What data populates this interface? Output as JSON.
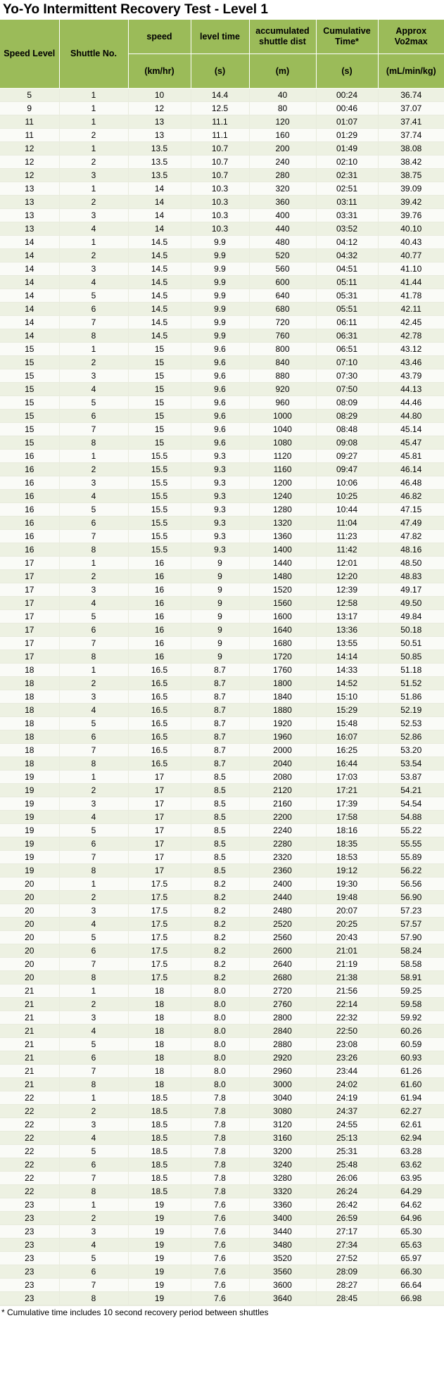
{
  "title": "Yo-Yo Intermittent Recovery Test - Level 1",
  "headers": [
    {
      "top": "",
      "bottom": ""
    },
    {
      "top": "",
      "bottom": ""
    },
    {
      "top": "speed",
      "bottom": "(km/hr)"
    },
    {
      "top": "level time",
      "bottom": "(s)"
    },
    {
      "top": "accumulated shuttle dist",
      "bottom": "(m)"
    },
    {
      "top": "Cumulative Time*",
      "bottom": "(s)"
    },
    {
      "top": "Approx Vo2max",
      "bottom": "(mL/min/kg)"
    }
  ],
  "speed_level_header": "Speed Level",
  "shuttle_no_header": "Shuttle No.",
  "rows": [
    [
      "5",
      "1",
      "10",
      "14.4",
      "40",
      "00:24",
      "36.74"
    ],
    [
      "9",
      "1",
      "12",
      "12.5",
      "80",
      "00:46",
      "37.07"
    ],
    [
      "11",
      "1",
      "13",
      "11.1",
      "120",
      "01:07",
      "37.41"
    ],
    [
      "11",
      "2",
      "13",
      "11.1",
      "160",
      "01:29",
      "37.74"
    ],
    [
      "12",
      "1",
      "13.5",
      "10.7",
      "200",
      "01:49",
      "38.08"
    ],
    [
      "12",
      "2",
      "13.5",
      "10.7",
      "240",
      "02:10",
      "38.42"
    ],
    [
      "12",
      "3",
      "13.5",
      "10.7",
      "280",
      "02:31",
      "38.75"
    ],
    [
      "13",
      "1",
      "14",
      "10.3",
      "320",
      "02:51",
      "39.09"
    ],
    [
      "13",
      "2",
      "14",
      "10.3",
      "360",
      "03:11",
      "39.42"
    ],
    [
      "13",
      "3",
      "14",
      "10.3",
      "400",
      "03:31",
      "39.76"
    ],
    [
      "13",
      "4",
      "14",
      "10.3",
      "440",
      "03:52",
      "40.10"
    ],
    [
      "14",
      "1",
      "14.5",
      "9.9",
      "480",
      "04:12",
      "40.43"
    ],
    [
      "14",
      "2",
      "14.5",
      "9.9",
      "520",
      "04:32",
      "40.77"
    ],
    [
      "14",
      "3",
      "14.5",
      "9.9",
      "560",
      "04:51",
      "41.10"
    ],
    [
      "14",
      "4",
      "14.5",
      "9.9",
      "600",
      "05:11",
      "41.44"
    ],
    [
      "14",
      "5",
      "14.5",
      "9.9",
      "640",
      "05:31",
      "41.78"
    ],
    [
      "14",
      "6",
      "14.5",
      "9.9",
      "680",
      "05:51",
      "42.11"
    ],
    [
      "14",
      "7",
      "14.5",
      "9.9",
      "720",
      "06:11",
      "42.45"
    ],
    [
      "14",
      "8",
      "14.5",
      "9.9",
      "760",
      "06:31",
      "42.78"
    ],
    [
      "15",
      "1",
      "15",
      "9.6",
      "800",
      "06:51",
      "43.12"
    ],
    [
      "15",
      "2",
      "15",
      "9.6",
      "840",
      "07:10",
      "43.46"
    ],
    [
      "15",
      "3",
      "15",
      "9.6",
      "880",
      "07:30",
      "43.79"
    ],
    [
      "15",
      "4",
      "15",
      "9.6",
      "920",
      "07:50",
      "44.13"
    ],
    [
      "15",
      "5",
      "15",
      "9.6",
      "960",
      "08:09",
      "44.46"
    ],
    [
      "15",
      "6",
      "15",
      "9.6",
      "1000",
      "08:29",
      "44.80"
    ],
    [
      "15",
      "7",
      "15",
      "9.6",
      "1040",
      "08:48",
      "45.14"
    ],
    [
      "15",
      "8",
      "15",
      "9.6",
      "1080",
      "09:08",
      "45.47"
    ],
    [
      "16",
      "1",
      "15.5",
      "9.3",
      "1120",
      "09:27",
      "45.81"
    ],
    [
      "16",
      "2",
      "15.5",
      "9.3",
      "1160",
      "09:47",
      "46.14"
    ],
    [
      "16",
      "3",
      "15.5",
      "9.3",
      "1200",
      "10:06",
      "46.48"
    ],
    [
      "16",
      "4",
      "15.5",
      "9.3",
      "1240",
      "10:25",
      "46.82"
    ],
    [
      "16",
      "5",
      "15.5",
      "9.3",
      "1280",
      "10:44",
      "47.15"
    ],
    [
      "16",
      "6",
      "15.5",
      "9.3",
      "1320",
      "11:04",
      "47.49"
    ],
    [
      "16",
      "7",
      "15.5",
      "9.3",
      "1360",
      "11:23",
      "47.82"
    ],
    [
      "16",
      "8",
      "15.5",
      "9.3",
      "1400",
      "11:42",
      "48.16"
    ],
    [
      "17",
      "1",
      "16",
      "9",
      "1440",
      "12:01",
      "48.50"
    ],
    [
      "17",
      "2",
      "16",
      "9",
      "1480",
      "12:20",
      "48.83"
    ],
    [
      "17",
      "3",
      "16",
      "9",
      "1520",
      "12:39",
      "49.17"
    ],
    [
      "17",
      "4",
      "16",
      "9",
      "1560",
      "12:58",
      "49.50"
    ],
    [
      "17",
      "5",
      "16",
      "9",
      "1600",
      "13:17",
      "49.84"
    ],
    [
      "17",
      "6",
      "16",
      "9",
      "1640",
      "13:36",
      "50.18"
    ],
    [
      "17",
      "7",
      "16",
      "9",
      "1680",
      "13:55",
      "50.51"
    ],
    [
      "17",
      "8",
      "16",
      "9",
      "1720",
      "14:14",
      "50.85"
    ],
    [
      "18",
      "1",
      "16.5",
      "8.7",
      "1760",
      "14:33",
      "51.18"
    ],
    [
      "18",
      "2",
      "16.5",
      "8.7",
      "1800",
      "14:52",
      "51.52"
    ],
    [
      "18",
      "3",
      "16.5",
      "8.7",
      "1840",
      "15:10",
      "51.86"
    ],
    [
      "18",
      "4",
      "16.5",
      "8.7",
      "1880",
      "15:29",
      "52.19"
    ],
    [
      "18",
      "5",
      "16.5",
      "8.7",
      "1920",
      "15:48",
      "52.53"
    ],
    [
      "18",
      "6",
      "16.5",
      "8.7",
      "1960",
      "16:07",
      "52.86"
    ],
    [
      "18",
      "7",
      "16.5",
      "8.7",
      "2000",
      "16:25",
      "53.20"
    ],
    [
      "18",
      "8",
      "16.5",
      "8.7",
      "2040",
      "16:44",
      "53.54"
    ],
    [
      "19",
      "1",
      "17",
      "8.5",
      "2080",
      "17:03",
      "53.87"
    ],
    [
      "19",
      "2",
      "17",
      "8.5",
      "2120",
      "17:21",
      "54.21"
    ],
    [
      "19",
      "3",
      "17",
      "8.5",
      "2160",
      "17:39",
      "54.54"
    ],
    [
      "19",
      "4",
      "17",
      "8.5",
      "2200",
      "17:58",
      "54.88"
    ],
    [
      "19",
      "5",
      "17",
      "8.5",
      "2240",
      "18:16",
      "55.22"
    ],
    [
      "19",
      "6",
      "17",
      "8.5",
      "2280",
      "18:35",
      "55.55"
    ],
    [
      "19",
      "7",
      "17",
      "8.5",
      "2320",
      "18:53",
      "55.89"
    ],
    [
      "19",
      "8",
      "17",
      "8.5",
      "2360",
      "19:12",
      "56.22"
    ],
    [
      "20",
      "1",
      "17.5",
      "8.2",
      "2400",
      "19:30",
      "56.56"
    ],
    [
      "20",
      "2",
      "17.5",
      "8.2",
      "2440",
      "19:48",
      "56.90"
    ],
    [
      "20",
      "3",
      "17.5",
      "8.2",
      "2480",
      "20:07",
      "57.23"
    ],
    [
      "20",
      "4",
      "17.5",
      "8.2",
      "2520",
      "20:25",
      "57.57"
    ],
    [
      "20",
      "5",
      "17.5",
      "8.2",
      "2560",
      "20:43",
      "57.90"
    ],
    [
      "20",
      "6",
      "17.5",
      "8.2",
      "2600",
      "21:01",
      "58.24"
    ],
    [
      "20",
      "7",
      "17.5",
      "8.2",
      "2640",
      "21:19",
      "58.58"
    ],
    [
      "20",
      "8",
      "17.5",
      "8.2",
      "2680",
      "21:38",
      "58.91"
    ],
    [
      "21",
      "1",
      "18",
      "8.0",
      "2720",
      "21:56",
      "59.25"
    ],
    [
      "21",
      "2",
      "18",
      "8.0",
      "2760",
      "22:14",
      "59.58"
    ],
    [
      "21",
      "3",
      "18",
      "8.0",
      "2800",
      "22:32",
      "59.92"
    ],
    [
      "21",
      "4",
      "18",
      "8.0",
      "2840",
      "22:50",
      "60.26"
    ],
    [
      "21",
      "5",
      "18",
      "8.0",
      "2880",
      "23:08",
      "60.59"
    ],
    [
      "21",
      "6",
      "18",
      "8.0",
      "2920",
      "23:26",
      "60.93"
    ],
    [
      "21",
      "7",
      "18",
      "8.0",
      "2960",
      "23:44",
      "61.26"
    ],
    [
      "21",
      "8",
      "18",
      "8.0",
      "3000",
      "24:02",
      "61.60"
    ],
    [
      "22",
      "1",
      "18.5",
      "7.8",
      "3040",
      "24:19",
      "61.94"
    ],
    [
      "22",
      "2",
      "18.5",
      "7.8",
      "3080",
      "24:37",
      "62.27"
    ],
    [
      "22",
      "3",
      "18.5",
      "7.8",
      "3120",
      "24:55",
      "62.61"
    ],
    [
      "22",
      "4",
      "18.5",
      "7.8",
      "3160",
      "25:13",
      "62.94"
    ],
    [
      "22",
      "5",
      "18.5",
      "7.8",
      "3200",
      "25:31",
      "63.28"
    ],
    [
      "22",
      "6",
      "18.5",
      "7.8",
      "3240",
      "25:48",
      "63.62"
    ],
    [
      "22",
      "7",
      "18.5",
      "7.8",
      "3280",
      "26:06",
      "63.95"
    ],
    [
      "22",
      "8",
      "18.5",
      "7.8",
      "3320",
      "26:24",
      "64.29"
    ],
    [
      "23",
      "1",
      "19",
      "7.6",
      "3360",
      "26:42",
      "64.62"
    ],
    [
      "23",
      "2",
      "19",
      "7.6",
      "3400",
      "26:59",
      "64.96"
    ],
    [
      "23",
      "3",
      "19",
      "7.6",
      "3440",
      "27:17",
      "65.30"
    ],
    [
      "23",
      "4",
      "19",
      "7.6",
      "3480",
      "27:34",
      "65.63"
    ],
    [
      "23",
      "5",
      "19",
      "7.6",
      "3520",
      "27:52",
      "65.97"
    ],
    [
      "23",
      "6",
      "19",
      "7.6",
      "3560",
      "28:09",
      "66.30"
    ],
    [
      "23",
      "7",
      "19",
      "7.6",
      "3600",
      "28:27",
      "66.64"
    ],
    [
      "23",
      "8",
      "19",
      "7.6",
      "3640",
      "28:45",
      "66.98"
    ]
  ],
  "footnote": "* Cumulative time includes 10 second recovery period between shuttles",
  "colors": {
    "header_bg": "#9bbb59",
    "row_odd": "#edf1e2",
    "row_even": "#fafbf7"
  }
}
